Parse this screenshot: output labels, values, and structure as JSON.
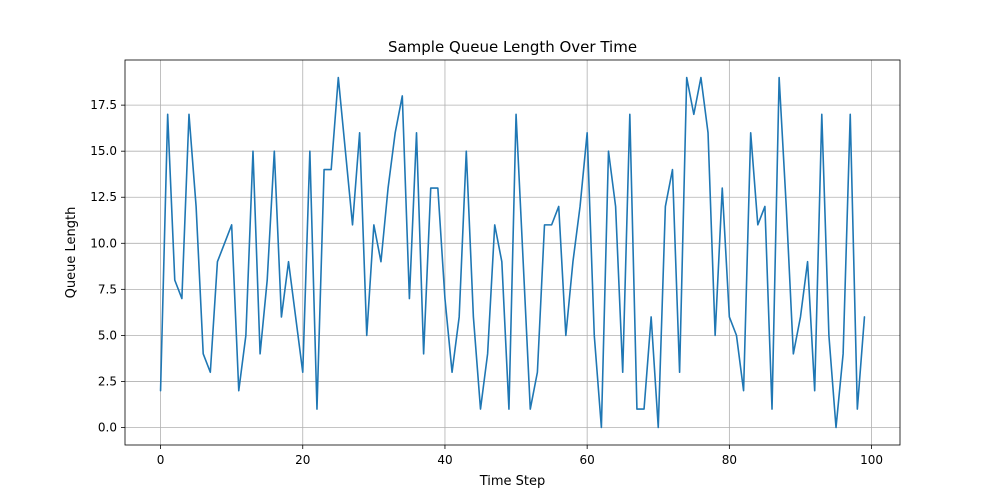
{
  "chart_data": {
    "type": "line",
    "title": "Sample Queue Length Over Time",
    "xlabel": "Time Step",
    "ylabel": "Queue Length",
    "xlim": [
      -5,
      104
    ],
    "ylim": [
      -0.95,
      19.95
    ],
    "xticks": [
      0,
      20,
      40,
      60,
      80,
      100
    ],
    "yticks": [
      0.0,
      2.5,
      5.0,
      7.5,
      10.0,
      12.5,
      15.0,
      17.5
    ],
    "xtick_labels": [
      "0",
      "20",
      "40",
      "60",
      "80",
      "100"
    ],
    "ytick_labels": [
      "0.0",
      "2.5",
      "5.0",
      "7.5",
      "10.0",
      "12.5",
      "15.0",
      "17.5"
    ],
    "grid": true,
    "legend": "none",
    "series": [
      {
        "color": "#1f77b4",
        "x": [
          0,
          1,
          2,
          3,
          4,
          5,
          6,
          7,
          8,
          9,
          10,
          11,
          12,
          13,
          14,
          15,
          16,
          17,
          18,
          19,
          20,
          21,
          22,
          23,
          24,
          25,
          26,
          27,
          28,
          29,
          30,
          31,
          32,
          33,
          34,
          35,
          36,
          37,
          38,
          39,
          40,
          41,
          42,
          43,
          44,
          45,
          46,
          47,
          48,
          49,
          50,
          51,
          52,
          53,
          54,
          55,
          56,
          57,
          58,
          59,
          60,
          61,
          62,
          63,
          64,
          65,
          66,
          67,
          68,
          69,
          70,
          71,
          72,
          73,
          74,
          75,
          76,
          77,
          78,
          79,
          80,
          81,
          82,
          83,
          84,
          85,
          86,
          87,
          88,
          89,
          90,
          91,
          92,
          93,
          94,
          95,
          96,
          97,
          98,
          99
        ],
        "values": [
          2,
          17,
          8,
          7,
          17,
          12,
          4,
          3,
          9,
          10,
          11,
          2,
          5,
          15,
          4,
          8,
          15,
          6,
          9,
          6,
          3,
          15,
          1,
          14,
          14,
          19,
          15,
          11,
          16,
          5,
          11,
          9,
          13,
          16,
          18,
          7,
          16,
          4,
          13,
          13,
          7,
          3,
          6,
          15,
          6,
          1,
          4,
          11,
          9,
          1,
          17,
          9,
          1,
          3,
          11,
          11,
          12,
          5,
          9,
          12,
          16,
          5,
          0,
          15,
          12,
          3,
          17,
          1,
          1,
          6,
          0,
          12,
          14,
          3,
          19,
          17,
          19,
          16,
          5,
          13,
          6,
          5,
          2,
          16,
          11,
          12,
          1,
          19,
          12,
          4,
          6,
          9,
          2,
          17,
          5,
          0,
          4,
          17,
          1,
          6
        ]
      }
    ]
  }
}
